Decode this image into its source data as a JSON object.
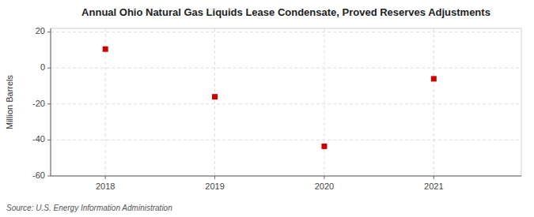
{
  "chart_data": {
    "type": "scatter",
    "title": "Annual Ohio Natural Gas Liquids Lease Condensate, Proved Reserves Adjustments",
    "ylabel": "Million Barrels",
    "annotations": [
      "Source: U.S. Energy Information Administration"
    ],
    "x": [
      2018,
      2019,
      2020,
      2021
    ],
    "values": [
      10.5,
      -16.0,
      -43.5,
      -6.0
    ],
    "color": "#cc0000",
    "marker": "square",
    "xlim": [
      2017.5,
      2021.8
    ],
    "xticks": [
      2018,
      2019,
      2020,
      2021
    ],
    "ylim": [
      -60,
      22
    ],
    "yticks": [
      -60,
      -40,
      -20,
      0,
      20
    ],
    "grid": true
  }
}
